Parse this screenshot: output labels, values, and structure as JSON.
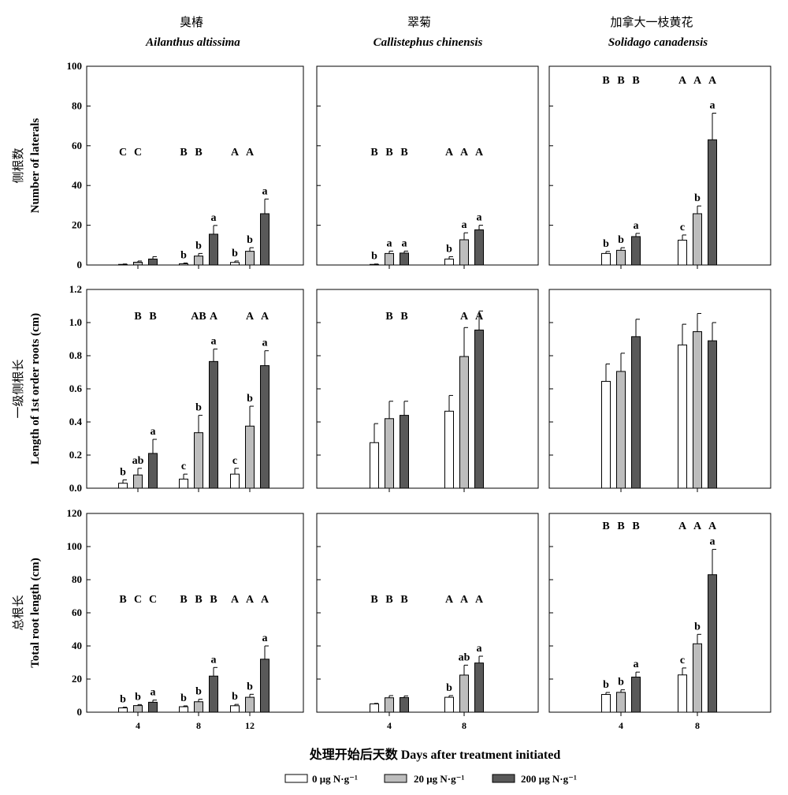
{
  "x_axis_title": "处理开始后天数 Days after treatment initiated",
  "legend": [
    {
      "label": "0 μg N·g⁻¹",
      "color": "#ffffff"
    },
    {
      "label": "20 μg N·g⁻¹",
      "color": "#bdbdbd"
    },
    {
      "label": "200 μg N·g⁻¹",
      "color": "#595959"
    }
  ],
  "columns": [
    {
      "title_cn": "臭椿",
      "title_latin": "Ailanthus altissima",
      "x_ticks": [
        "4",
        "8",
        "12"
      ]
    },
    {
      "title_cn": "翠菊",
      "title_latin": "Callistephus chinensis",
      "x_ticks": [
        "4",
        "8"
      ]
    },
    {
      "title_cn": "加拿大一枝黄花",
      "title_latin": "Solidago canadensis",
      "x_ticks": [
        "4",
        "8"
      ]
    }
  ],
  "rows": [
    {
      "ylabel_cn": "侧根数",
      "ylabel_en": "Number of laterals",
      "ylim": [
        0,
        100
      ],
      "yticks": [
        "0",
        "20",
        "40",
        "60",
        "80",
        "100"
      ]
    },
    {
      "ylabel_cn": "一级侧根长",
      "ylabel_en": "Length of 1st order roots (cm)",
      "ylim": [
        0,
        1.2
      ],
      "yticks": [
        "0.0",
        "0.2",
        "0.4",
        "0.6",
        "0.8",
        "1.0",
        "1.2"
      ]
    },
    {
      "ylabel_cn": "总根长",
      "ylabel_en": "Total root length (cm)",
      "ylim": [
        0,
        120
      ],
      "yticks": [
        "0",
        "20",
        "40",
        "60",
        "80",
        "100",
        "120"
      ]
    }
  ],
  "chart_data": [
    {
      "type": "bar",
      "row": 0,
      "col": 0,
      "categories": [
        "4",
        "8",
        "12"
      ],
      "ylim": [
        0,
        100
      ],
      "series": [
        {
          "name": "0 μg N·g⁻¹",
          "values": [
            0.3,
            0.6,
            1.3
          ],
          "errors": [
            0.2,
            0.4,
            0.7
          ]
        },
        {
          "name": "20 μg N·g⁻¹",
          "values": [
            1.4,
            4.5,
            6.9
          ],
          "errors": [
            0.6,
            1.3,
            1.8
          ]
        },
        {
          "name": "200 μg N·g⁻¹",
          "values": [
            3.0,
            15.5,
            25.8
          ],
          "errors": [
            1.2,
            4.4,
            7.4
          ]
        }
      ],
      "bar_labels": [
        [
          "",
          "",
          ""
        ],
        [
          "b",
          "b",
          "a"
        ],
        [
          "b",
          "b",
          "a"
        ]
      ],
      "group_labels": [
        [
          "C",
          "C",
          ""
        ],
        [
          "B",
          "B",
          ""
        ],
        [
          "A",
          "A",
          ""
        ]
      ]
    },
    {
      "type": "bar",
      "row": 0,
      "col": 1,
      "categories": [
        "4",
        "8"
      ],
      "ylim": [
        0,
        100
      ],
      "series": [
        {
          "name": "0 μg N·g⁻¹",
          "values": [
            0.3,
            3.0
          ],
          "errors": [
            0.2,
            1.2
          ]
        },
        {
          "name": "20 μg N·g⁻¹",
          "values": [
            5.8,
            12.7
          ],
          "errors": [
            1.2,
            3.5
          ]
        },
        {
          "name": "200 μg N·g⁻¹",
          "values": [
            6.0,
            17.7
          ],
          "errors": [
            1.0,
            2.3
          ]
        }
      ],
      "bar_labels": [
        [
          "b",
          "a",
          "a"
        ],
        [
          "b",
          "a",
          "a"
        ]
      ],
      "group_labels": [
        [
          "B",
          "B",
          "B"
        ],
        [
          "A",
          "A",
          "A"
        ]
      ]
    },
    {
      "type": "bar",
      "row": 0,
      "col": 2,
      "categories": [
        "4",
        "8"
      ],
      "ylim": [
        0,
        100
      ],
      "series": [
        {
          "name": "0 μg N·g⁻¹",
          "values": [
            5.8,
            12.5
          ],
          "errors": [
            1.0,
            2.6
          ]
        },
        {
          "name": "20 μg N·g⁻¹",
          "values": [
            7.4,
            25.8
          ],
          "errors": [
            1.3,
            3.9
          ]
        },
        {
          "name": "200 μg N·g⁻¹",
          "values": [
            14.3,
            63.0
          ],
          "errors": [
            1.6,
            13.4
          ]
        }
      ],
      "bar_labels": [
        [
          "b",
          "b",
          "a"
        ],
        [
          "c",
          "b",
          "a"
        ]
      ],
      "group_labels": [
        [
          "B",
          "B",
          "B"
        ],
        [
          "A",
          "A",
          "A"
        ]
      ]
    },
    {
      "type": "bar",
      "row": 1,
      "col": 0,
      "categories": [
        "4",
        "8",
        "12"
      ],
      "ylim": [
        0,
        1.2
      ],
      "series": [
        {
          "name": "0 μg N·g⁻¹",
          "values": [
            0.03,
            0.055,
            0.085
          ],
          "errors": [
            0.02,
            0.03,
            0.035
          ]
        },
        {
          "name": "20 μg N·g⁻¹",
          "values": [
            0.08,
            0.335,
            0.375
          ],
          "errors": [
            0.04,
            0.105,
            0.12
          ]
        },
        {
          "name": "200 μg N·g⁻¹",
          "values": [
            0.21,
            0.765,
            0.74
          ],
          "errors": [
            0.085,
            0.075,
            0.09
          ]
        }
      ],
      "bar_labels": [
        [
          "b",
          "ab",
          "a"
        ],
        [
          "c",
          "b",
          "a"
        ],
        [
          "c",
          "b",
          "a"
        ]
      ],
      "group_labels": [
        [
          "",
          "B",
          "B"
        ],
        [
          "",
          "AB",
          "A"
        ],
        [
          "",
          "A",
          "A"
        ]
      ]
    },
    {
      "type": "bar",
      "row": 1,
      "col": 1,
      "categories": [
        "4",
        "8"
      ],
      "ylim": [
        0,
        1.2
      ],
      "series": [
        {
          "name": "0 μg N·g⁻¹",
          "values": [
            0.275,
            0.465
          ],
          "errors": [
            0.115,
            0.095
          ]
        },
        {
          "name": "20 μg N·g⁻¹",
          "values": [
            0.42,
            0.795
          ],
          "errors": [
            0.105,
            0.175
          ]
        },
        {
          "name": "200 μg N·g⁻¹",
          "values": [
            0.44,
            0.955
          ],
          "errors": [
            0.085,
            0.115
          ]
        }
      ],
      "bar_labels": [
        [
          "",
          "",
          ""
        ],
        [
          "",
          "",
          ""
        ]
      ],
      "group_labels": [
        [
          "",
          "B",
          "B"
        ],
        [
          "",
          "A",
          "A"
        ]
      ]
    },
    {
      "type": "bar",
      "row": 1,
      "col": 2,
      "categories": [
        "4",
        "8"
      ],
      "ylim": [
        0,
        1.2
      ],
      "series": [
        {
          "name": "0 μg N·g⁻¹",
          "values": [
            0.645,
            0.865
          ],
          "errors": [
            0.105,
            0.125
          ]
        },
        {
          "name": "20 μg N·g⁻¹",
          "values": [
            0.705,
            0.945
          ],
          "errors": [
            0.11,
            0.11
          ]
        },
        {
          "name": "200 μg N·g⁻¹",
          "values": [
            0.915,
            0.89
          ],
          "errors": [
            0.105,
            0.11
          ]
        }
      ],
      "bar_labels": [
        [
          "",
          "",
          ""
        ],
        [
          "",
          "",
          ""
        ]
      ],
      "group_labels": [
        [
          "",
          "",
          ""
        ],
        [
          "",
          "",
          ""
        ]
      ]
    },
    {
      "type": "bar",
      "row": 2,
      "col": 0,
      "categories": [
        "4",
        "8",
        "12"
      ],
      "ylim": [
        0,
        120
      ],
      "series": [
        {
          "name": "0 μg N·g⁻¹",
          "values": [
            2.6,
            3.3,
            3.9
          ],
          "errors": [
            0.4,
            0.5,
            0.8
          ]
        },
        {
          "name": "20 μg N·g⁻¹",
          "values": [
            4.0,
            6.3,
            9.0
          ],
          "errors": [
            0.6,
            1.5,
            1.8
          ]
        },
        {
          "name": "200 μg N·g⁻¹",
          "values": [
            6.0,
            21.8,
            32.0
          ],
          "errors": [
            1.3,
            5.2,
            8.0
          ]
        }
      ],
      "bar_labels": [
        [
          "b",
          "b",
          "a"
        ],
        [
          "b",
          "b",
          "a"
        ],
        [
          "b",
          "b",
          "a"
        ]
      ],
      "group_labels": [
        [
          "B",
          "C",
          "C"
        ],
        [
          "B",
          "B",
          "B"
        ],
        [
          "A",
          "A",
          "A"
        ]
      ]
    },
    {
      "type": "bar",
      "row": 2,
      "col": 1,
      "categories": [
        "4",
        "8"
      ],
      "ylim": [
        0,
        120
      ],
      "series": [
        {
          "name": "0 μg N·g⁻¹",
          "values": [
            5.0,
            9.0
          ],
          "errors": [
            0.3,
            1.0
          ]
        },
        {
          "name": "20 μg N·g⁻¹",
          "values": [
            8.7,
            22.4
          ],
          "errors": [
            1.3,
            6.0
          ]
        },
        {
          "name": "200 μg N·g⁻¹",
          "values": [
            8.8,
            29.7
          ],
          "errors": [
            1.0,
            4.1
          ]
        }
      ],
      "bar_labels": [
        [
          "",
          "",
          ""
        ],
        [
          "b",
          "ab",
          "a"
        ]
      ],
      "group_labels": [
        [
          "B",
          "B",
          "B"
        ],
        [
          "A",
          "A",
          "A"
        ]
      ]
    },
    {
      "type": "bar",
      "row": 2,
      "col": 2,
      "categories": [
        "4",
        "8"
      ],
      "ylim": [
        0,
        120
      ],
      "series": [
        {
          "name": "0 μg N·g⁻¹",
          "values": [
            10.7,
            22.5
          ],
          "errors": [
            1.2,
            4.2
          ]
        },
        {
          "name": "20 μg N·g⁻¹",
          "values": [
            12.0,
            41.3
          ],
          "errors": [
            1.5,
            5.7
          ]
        },
        {
          "name": "200 μg N·g⁻¹",
          "values": [
            21.2,
            83.0
          ],
          "errors": [
            3.0,
            15.3
          ]
        }
      ],
      "bar_labels": [
        [
          "b",
          "b",
          "a"
        ],
        [
          "c",
          "b",
          "a"
        ]
      ],
      "group_labels": [
        [
          "B",
          "B",
          "B"
        ],
        [
          "A",
          "A",
          "A"
        ]
      ]
    }
  ]
}
